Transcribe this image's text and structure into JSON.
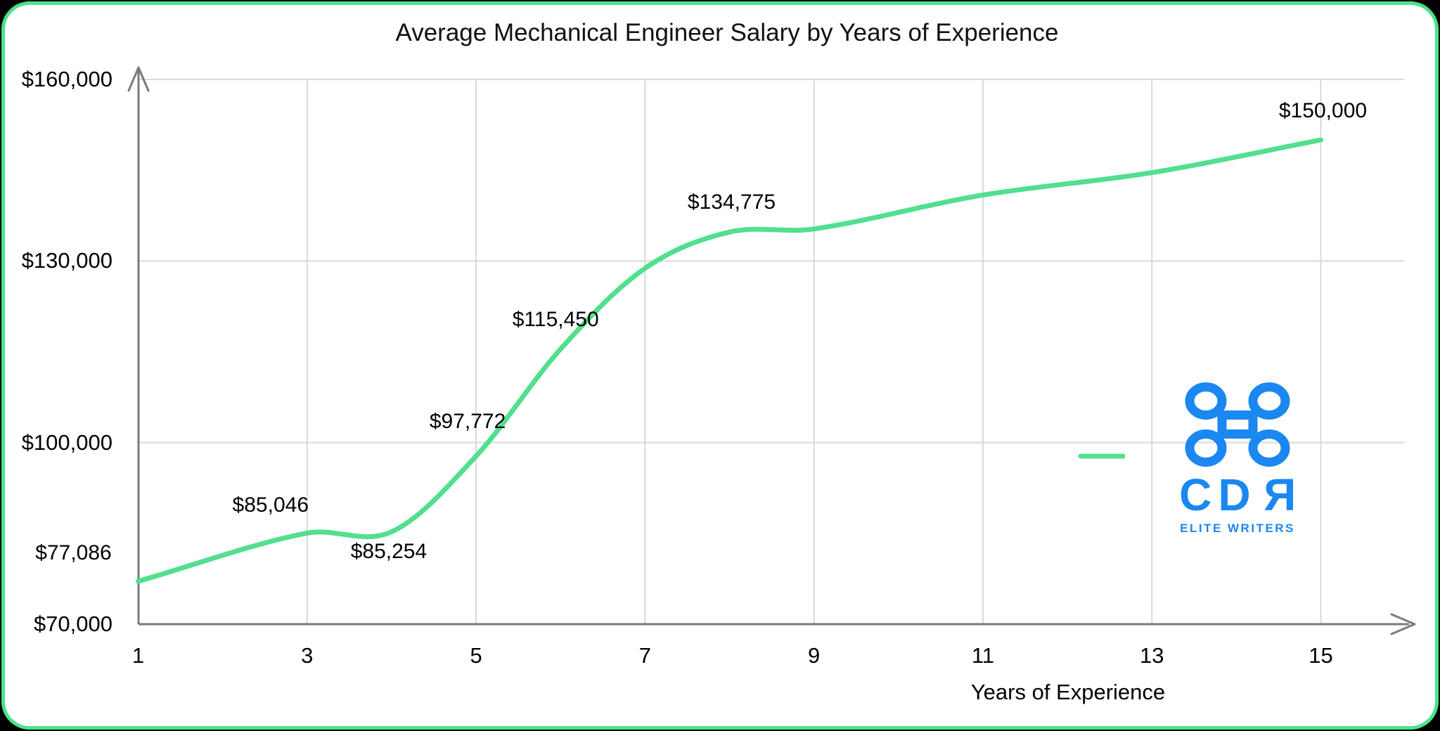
{
  "page": {
    "background": "#000000",
    "card_background": "#ffffff",
    "card_border_color": "#4ce28c"
  },
  "chart_data": {
    "type": "line",
    "title": "Average Mechanical Engineer Salary by Years of Experience",
    "xlabel": "Years of Experience",
    "ylabel": "",
    "smooth": true,
    "grid": true,
    "legend": {
      "marker": "line-dash",
      "label": "",
      "position": "right-middle"
    },
    "line_color": "#52df8e",
    "gridline_color": "#d9d9d9",
    "axis_color": "#7a7a7a",
    "xlim": [
      1,
      15
    ],
    "ylim": [
      70000,
      160000
    ],
    "x": [
      1,
      3,
      4,
      5,
      6,
      8,
      15
    ],
    "values": [
      77086,
      85046,
      85254,
      97772,
      115450,
      134775,
      150000
    ],
    "point_labels": [
      "$77,086",
      "$85,046",
      "$85,254",
      "$97,772",
      "$115,450",
      "$134,775",
      "$150,000"
    ],
    "x_ticks": [
      "1",
      "3",
      "5",
      "7",
      "9",
      "11",
      "13",
      "15"
    ],
    "y_ticks": [
      {
        "label": "$70,000",
        "value": 70000
      },
      {
        "label": "$100,000",
        "value": 100000
      },
      {
        "label": "$130,000",
        "value": 130000
      },
      {
        "label": "$160,000",
        "value": 160000
      }
    ]
  },
  "logo": {
    "symbol": "command-icon",
    "text": "CDR",
    "subtext": "ELITE WRITERS",
    "color": "#1b87f0"
  }
}
